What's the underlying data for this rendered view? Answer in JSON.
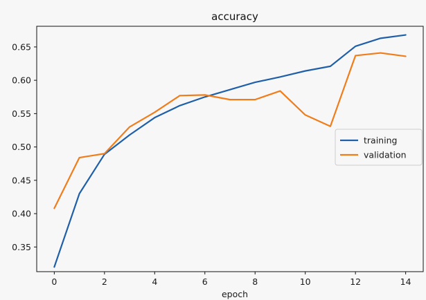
{
  "chart_data": {
    "type": "line",
    "title": "accuracy",
    "xlabel": "epoch",
    "ylabel": "",
    "x": [
      0,
      1,
      2,
      3,
      4,
      5,
      6,
      7,
      8,
      9,
      10,
      11,
      12,
      13,
      14
    ],
    "xlim": [
      -0.7,
      14.7
    ],
    "ylim": [
      0.313,
      0.681
    ],
    "xticks": [
      0,
      2,
      4,
      6,
      8,
      10,
      12,
      14
    ],
    "yticks": [
      0.35,
      0.4,
      0.45,
      0.5,
      0.55,
      0.6,
      0.65
    ],
    "ytick_labels": [
      "0.35",
      "0.40",
      "0.45",
      "0.50",
      "0.55",
      "0.60",
      "0.65"
    ],
    "xtick_labels": [
      "0",
      "2",
      "4",
      "6",
      "8",
      "10",
      "12",
      "14"
    ],
    "grid": false,
    "legend_position": "center-right",
    "series": [
      {
        "name": "training",
        "color": "#1f5fa8",
        "values": [
          0.32,
          0.43,
          0.489,
          0.518,
          0.544,
          0.562,
          0.575,
          0.586,
          0.597,
          0.605,
          0.614,
          0.621,
          0.651,
          0.663,
          0.668
        ]
      },
      {
        "name": "validation",
        "color": "#f07c1a",
        "values": [
          0.408,
          0.484,
          0.49,
          0.53,
          0.552,
          0.577,
          0.578,
          0.571,
          0.571,
          0.584,
          0.548,
          0.531,
          0.637,
          0.641,
          0.636
        ]
      }
    ]
  }
}
